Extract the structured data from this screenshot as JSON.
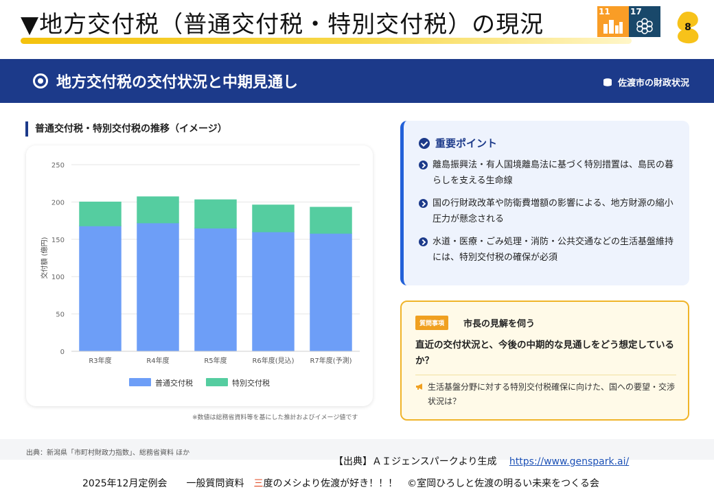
{
  "header": {
    "title": "▼地方交付税（普通交付税・特別交付税）の現況",
    "page_number": "8",
    "sdg_badges": [
      {
        "number": "11",
        "label": "住み続けられる まちづくりを",
        "color": "#f99d26",
        "icon": "city-icon"
      },
      {
        "number": "17",
        "label": "パートナーシップで 目標を達成しよう",
        "color": "#19486a",
        "icon": "partnership-icon"
      }
    ]
  },
  "banner": {
    "title": "地方交付税の交付状況と中期見通し",
    "right_label": "佐渡市の財政状況",
    "color": "#1c3a8a"
  },
  "chart_section": {
    "heading": "普通交付税・特別交付税の推移（イメージ）",
    "note": "※数値は総務省資料等を基にした推計およびイメージ値です"
  },
  "chart_data": {
    "type": "bar",
    "stacked": true,
    "categories": [
      "R3年度",
      "R4年度",
      "R5年度",
      "R6年度(見込)",
      "R7年度(予測)"
    ],
    "series": [
      {
        "name": "普通交付税",
        "values": [
          168,
          172,
          165,
          160,
          158
        ],
        "color": "#6d9ef7"
      },
      {
        "name": "特別交付税",
        "values": [
          32,
          35,
          38,
          36,
          35
        ],
        "color": "#55cda0"
      }
    ],
    "ylabel": "交付額 (億円)",
    "ylim": [
      0,
      250
    ],
    "yticks": [
      0,
      50,
      100,
      150,
      200,
      250
    ],
    "grid": true,
    "legend": "bottom"
  },
  "points": {
    "title": "重要ポイント",
    "items": [
      "離島振興法・有人国境離島法に基づく特別措置は、島民の暮らしを支える生命線",
      "国の行財政改革や防衛費増額の影響による、地方財源の縮小圧力が懸念される",
      "水道・医療・ごみ処理・消防・公共交通などの生活基盤維持には、特別交付税の確保が必須"
    ]
  },
  "question": {
    "tag": "質問事項",
    "heading": "市長の見解を伺う",
    "body": "直近の交付状況と、今後の中期的な見通しをどう想定しているか？",
    "sub": "生活基盤分野に対する特別交付税確保に向けた、国への要望・交渉状況は？"
  },
  "footer": {
    "source": "出典：新潟県「市町村財政力指数」、総務省資料 ほか",
    "gen_source_label": "【出典】ＡＩジェンスパークより生成",
    "gen_source_url": "https://www.genspark.ai/",
    "line_prefix": "2025年12月定例会　　一般質問資料　",
    "line_highlight": "三",
    "line_suffix": "度のメシより佐渡が好き！！！　©室岡ひろしと佐渡の明るい未来をつくる会"
  }
}
